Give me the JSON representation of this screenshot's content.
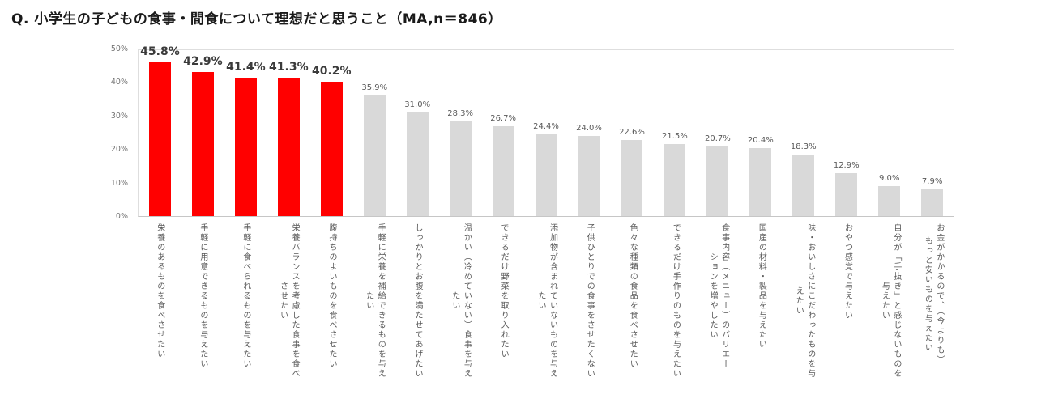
{
  "title": "Q. 小学生の子どもの食事・間食について理想だと思うこと（MA,n＝846）",
  "chart_data": {
    "type": "bar",
    "title": "Q. 小学生の子どもの食事・間食について理想だと思うこと（MA,n＝846）",
    "sample": "MA,n＝846",
    "unit": "%",
    "ylim": [
      0,
      50
    ],
    "y_ticks": [
      "0%",
      "10%",
      "20%",
      "30%",
      "40%",
      "50%"
    ],
    "grid": false,
    "legend": false,
    "highlighted_bars": 5,
    "highlight_color": "#FF0000",
    "bar_color": "#D9D9D9",
    "categories": [
      "栄養のあるものを食べさせたい",
      "手軽に用意できるものを与えたい",
      "手軽に食べられるものを与えたい",
      "栄養バランスを考慮した食事を食べ\nさせたい",
      "腹持ちのよいものを食べさせたい",
      "手軽に栄養を補給できるものを与え\nたい",
      "しっかりとお腹を満たせてあげたい",
      "温かい（冷めていない）食事を与え\nたい",
      "できるだけ野菜を取り入れたい",
      "添加物が含まれていないものを与え\nたい",
      "子供ひとりでの食事をさせたくない",
      "色々な種類の食品を食べさせたい",
      "できるだけ手作りのものを与えたい",
      "食事内容（メニュー）のバリエー\nションを増やしたい",
      "国産の材料・製品を与えたい",
      "味・おいしさにこだわったものを与\nえたい",
      "おやつ感覚で与えたい",
      "自分が「手抜き」と感じないものを\n与えたい",
      "お金がかかるので、（今よりも）\nもっと安いものを与えたい"
    ],
    "values": [
      45.8,
      42.9,
      41.4,
      41.3,
      40.2,
      35.9,
      31.0,
      28.3,
      26.7,
      24.4,
      24.0,
      22.6,
      21.5,
      20.7,
      20.4,
      18.3,
      12.9,
      9.0,
      7.9
    ]
  }
}
